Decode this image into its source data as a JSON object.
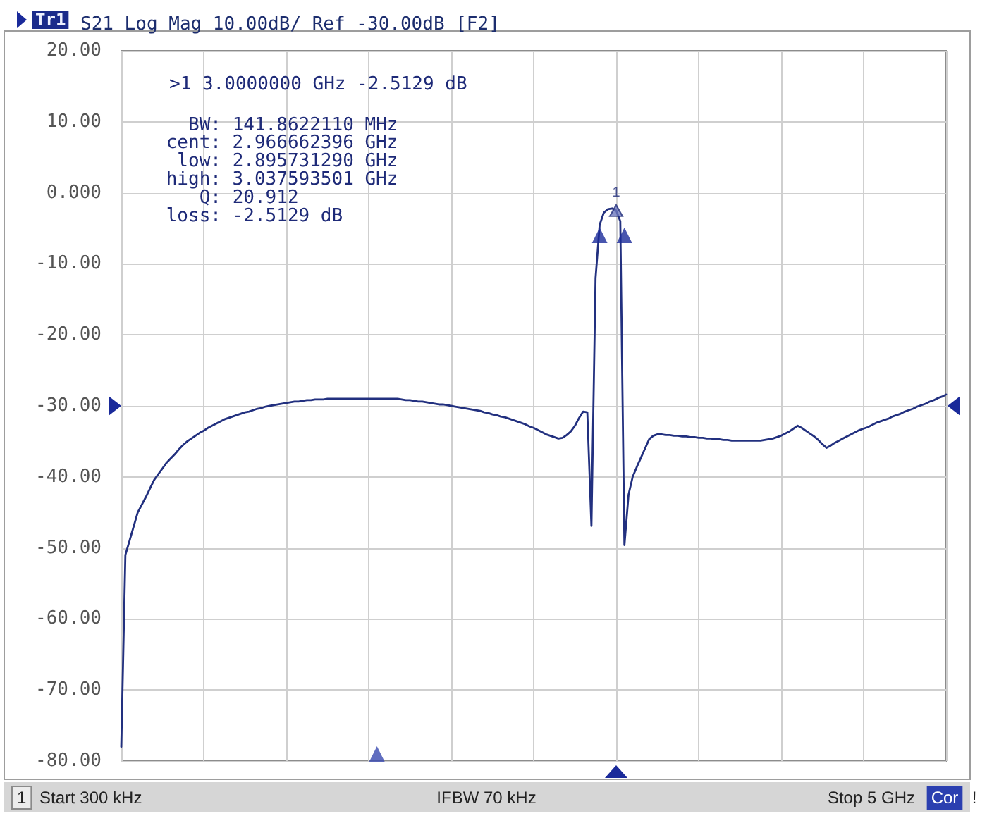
{
  "chart_data": {
    "type": "line",
    "title": "S21 Log Mag 10.00dB/ Ref -30.00dB [F2]",
    "annotations": [
      "Tr1",
      ">1 3.0000000 GHz -2.5129 dB",
      "BW: 141.8622110 MHz",
      "cent: 2.966662396 GHz",
      "low: 2.895731290 GHz",
      "high: 3.037593501 GHz",
      "Q: 20.912",
      "loss: -2.5129 dB",
      "1",
      "Start 300 kHz",
      "IFBW 70 kHz",
      "Stop 5 GHz",
      "Cor",
      "!"
    ],
    "categories": [
      null,
      null,
      null,
      null,
      null,
      null,
      null,
      null,
      null,
      null,
      null,
      null,
      null,
      null,
      null,
      null,
      null,
      null,
      null,
      null,
      null,
      null,
      null,
      null,
      null,
      null,
      null,
      null,
      null,
      null,
      null,
      null,
      null,
      null,
      null,
      null,
      null,
      null,
      null,
      null,
      null,
      null,
      null,
      null,
      null,
      null,
      null,
      null,
      null,
      null,
      null,
      null,
      null,
      null,
      null,
      null,
      null,
      null,
      null,
      null,
      null,
      null,
      null,
      null,
      null,
      null,
      null,
      null,
      null,
      null,
      null,
      null,
      null,
      null,
      null,
      null,
      null,
      null,
      null,
      null,
      null,
      null,
      null,
      null,
      null,
      null,
      null,
      null,
      null,
      null,
      null,
      null,
      null,
      null,
      null,
      null,
      null,
      null,
      null,
      null,
      null,
      null,
      null,
      null,
      null,
      null,
      null,
      null,
      null,
      null,
      null,
      null,
      null,
      null,
      null,
      null,
      null,
      null,
      null,
      null,
      null,
      null,
      null,
      null,
      null,
      null,
      null,
      null,
      null,
      null,
      null,
      null,
      null,
      null,
      null,
      null,
      null,
      null,
      null,
      null,
      null,
      null,
      null,
      null,
      null,
      null,
      null,
      null,
      null,
      null,
      null,
      null,
      null,
      null,
      null,
      null,
      null,
      null,
      null,
      null,
      null,
      null,
      null,
      null,
      null,
      null,
      null,
      null,
      null,
      null,
      null,
      null,
      null,
      null,
      null,
      null,
      null,
      null,
      null,
      null,
      null,
      null,
      null,
      null,
      null,
      null,
      null,
      null,
      null,
      null,
      null,
      null,
      null,
      null,
      null,
      null,
      null,
      null,
      null,
      null,
      null
    ],
    "series": [
      {
        "color": "#22307f",
        "values": [
          -78,
          -51,
          -49,
          -47,
          -45,
          -43.9,
          -42.8,
          -41.6,
          -40.4,
          -39.6,
          -38.8,
          -38,
          -37.4,
          -36.8,
          -36.1,
          -35.5,
          -35,
          -34.6,
          -34.2,
          -33.8,
          -33.5,
          -33.1,
          -32.8,
          -32.5,
          -32.2,
          -31.9,
          -31.7,
          -31.5,
          -31.3,
          -31.1,
          -30.9,
          -30.8,
          -30.6,
          -30.4,
          -30.3,
          -30.1,
          -30,
          -29.9,
          -29.8,
          -29.7,
          -29.6,
          -29.5,
          -29.4,
          -29.4,
          -29.3,
          -29.2,
          -29.2,
          -29.1,
          -29.1,
          -29.1,
          -29,
          -29,
          -29,
          -29,
          -29,
          -29,
          -29,
          -29,
          -29,
          -29,
          -29,
          -29,
          -29,
          -29,
          -29,
          -29,
          -29,
          -29,
          -29.1,
          -29.2,
          -29.2,
          -29.3,
          -29.4,
          -29.4,
          -29.5,
          -29.6,
          -29.7,
          -29.8,
          -29.8,
          -29.9,
          -30,
          -30.1,
          -30.2,
          -30.3,
          -30.4,
          -30.5,
          -30.6,
          -30.7,
          -30.9,
          -31,
          -31.2,
          -31.3,
          -31.5,
          -31.6,
          -31.8,
          -32,
          -32.2,
          -32.4,
          -32.6,
          -32.9,
          -33.1,
          -33.4,
          -33.7,
          -34,
          -34.2,
          -34.4,
          -34.6,
          -34.5,
          -34.1,
          -33.6,
          -32.8,
          -31.7,
          -30.8,
          -30.9,
          -46.9,
          -12,
          -4.5,
          -2.8,
          -2.3,
          -2.2,
          -2.5,
          -4,
          -49.6,
          -42.5,
          -40,
          -38.6,
          -37.3,
          -36,
          -34.7,
          -34.2,
          -34,
          -34,
          -34.1,
          -34.1,
          -34.2,
          -34.2,
          -34.3,
          -34.3,
          -34.4,
          -34.4,
          -34.5,
          -34.5,
          -34.6,
          -34.6,
          -34.7,
          -34.7,
          -34.8,
          -34.8,
          -34.9,
          -34.9,
          -34.9,
          -34.9,
          -34.9,
          -34.9,
          -34.9,
          -34.9,
          -34.8,
          -34.7,
          -34.6,
          -34.4,
          -34.2,
          -33.9,
          -33.6,
          -33.2,
          -32.8,
          -33.1,
          -33.5,
          -33.9,
          -34.3,
          -34.8,
          -35.4,
          -35.9,
          -35.6,
          -35.2,
          -34.9,
          -34.6,
          -34.3,
          -34,
          -33.7,
          -33.4,
          -33.2,
          -33,
          -32.7,
          -32.4,
          -32.2,
          -32,
          -31.8,
          -31.5,
          -31.3,
          -31.1,
          -30.8,
          -30.6,
          -30.4,
          -30.1,
          -29.9,
          -29.7,
          -29.4,
          -29.2,
          -28.9,
          -28.7,
          -28.4
        ]
      },
      {
        "type": "scatter",
        "marker": "triangle",
        "color": "#1a2a9a",
        "values": [
          null,
          null,
          null,
          null,
          null,
          null,
          null,
          null,
          null,
          null,
          null,
          null,
          null,
          null,
          null,
          null,
          null,
          null,
          null,
          null,
          null,
          null,
          null,
          null,
          null,
          null,
          null,
          null,
          null,
          null,
          null,
          null,
          null,
          null,
          null,
          null,
          null,
          null,
          null,
          null,
          null,
          null,
          null,
          null,
          null,
          null,
          null,
          null,
          null,
          null,
          null,
          null,
          null,
          null,
          null,
          null,
          null,
          null,
          null,
          null,
          null,
          null,
          null,
          null,
          null,
          null,
          null,
          null,
          null,
          null,
          null,
          null,
          null,
          null,
          null,
          null,
          null,
          null,
          null,
          null,
          null,
          null,
          null,
          null,
          null,
          null,
          null,
          null,
          null,
          null,
          null,
          null,
          null,
          null,
          null,
          null,
          null,
          null,
          null,
          null,
          null,
          null,
          null,
          null,
          null,
          null,
          null,
          null,
          null,
          null,
          null,
          null,
          null,
          null,
          null,
          null,
          -6,
          null,
          null,
          null,
          null,
          null,
          -6,
          null,
          null,
          null,
          null,
          null,
          null,
          null,
          null,
          null,
          null,
          null,
          null,
          null,
          null,
          null,
          null,
          null,
          null,
          null,
          null,
          null,
          null,
          null,
          null,
          null,
          null,
          null,
          null,
          null,
          null,
          null,
          null,
          null,
          null,
          null,
          null,
          null,
          null,
          null,
          null,
          null,
          null,
          null,
          null,
          null,
          null,
          null,
          null,
          null,
          null,
          null,
          null,
          null,
          null,
          null,
          null,
          null,
          null,
          null,
          null,
          null,
          null,
          null,
          null,
          null,
          null,
          null,
          null,
          null,
          null,
          null,
          null,
          null,
          null,
          null,
          null,
          null,
          null
        ]
      },
      {
        "type": "scatter",
        "name": "1",
        "marker": "triangle",
        "color": "#6d78bd",
        "values": [
          null,
          null,
          null,
          null,
          null,
          null,
          null,
          null,
          null,
          null,
          null,
          null,
          null,
          null,
          null,
          null,
          null,
          null,
          null,
          null,
          null,
          null,
          null,
          null,
          null,
          null,
          null,
          null,
          null,
          null,
          null,
          null,
          null,
          null,
          null,
          null,
          null,
          null,
          null,
          null,
          null,
          null,
          null,
          null,
          null,
          null,
          null,
          null,
          null,
          null,
          null,
          null,
          null,
          null,
          null,
          null,
          null,
          null,
          null,
          null,
          null,
          null,
          null,
          null,
          null,
          null,
          null,
          null,
          null,
          null,
          null,
          null,
          null,
          null,
          null,
          null,
          null,
          null,
          null,
          null,
          null,
          null,
          null,
          null,
          null,
          null,
          null,
          null,
          null,
          null,
          null,
          null,
          null,
          null,
          null,
          null,
          null,
          null,
          null,
          null,
          null,
          null,
          null,
          null,
          null,
          null,
          null,
          null,
          null,
          null,
          null,
          null,
          null,
          null,
          null,
          null,
          null,
          null,
          null,
          null,
          -2.5129,
          null,
          null,
          null,
          null,
          null,
          null,
          null,
          null,
          null,
          null,
          null,
          null,
          null,
          null,
          null,
          null,
          null,
          null,
          null,
          null,
          null,
          null,
          null,
          null,
          null,
          null,
          null,
          null,
          null,
          null,
          null,
          null,
          null,
          null,
          null,
          null,
          null,
          null,
          null,
          null,
          null,
          null,
          null,
          null,
          null,
          null,
          null,
          null,
          null,
          null,
          null,
          null,
          null,
          null,
          null,
          null,
          null,
          null,
          null,
          null,
          null,
          null,
          null,
          null,
          null,
          null,
          null,
          null,
          null,
          null,
          null,
          null,
          null,
          null,
          null,
          null,
          null,
          null,
          null,
          null
        ]
      },
      {
        "type": "scatter",
        "marker": "triangle",
        "color": "#3a4ab0",
        "values": [
          null,
          null,
          null,
          null,
          null,
          null,
          null,
          null,
          null,
          null,
          null,
          null,
          null,
          null,
          null,
          null,
          null,
          null,
          null,
          null,
          null,
          null,
          null,
          null,
          null,
          null,
          null,
          null,
          null,
          null,
          null,
          null,
          null,
          null,
          null,
          null,
          null,
          null,
          null,
          null,
          null,
          null,
          null,
          null,
          null,
          null,
          null,
          null,
          null,
          null,
          null,
          null,
          null,
          null,
          null,
          null,
          null,
          null,
          null,
          null,
          null,
          null,
          -79,
          null,
          null,
          null,
          null,
          null,
          null,
          null,
          null,
          null,
          null,
          null,
          null,
          null,
          null,
          null,
          null,
          null,
          null,
          null,
          null,
          null,
          null,
          null,
          null,
          null,
          null,
          null,
          null,
          null,
          null,
          null,
          null,
          null,
          null,
          null,
          null,
          null,
          null,
          null,
          null,
          null,
          null,
          null,
          null,
          null,
          null,
          null,
          null,
          null,
          null,
          null,
          null,
          null,
          null,
          null,
          null,
          null,
          null,
          null,
          null,
          null,
          null,
          null,
          null,
          null,
          null,
          null,
          null,
          null,
          null,
          null,
          null,
          null,
          null,
          null,
          null,
          null,
          null,
          null,
          null,
          null,
          null,
          null,
          null,
          null,
          null,
          null,
          null,
          null,
          null,
          null,
          null,
          null,
          null,
          null,
          null,
          null,
          null,
          null,
          null,
          null,
          null,
          null,
          null,
          null,
          null,
          null,
          null,
          null,
          null,
          null,
          null,
          null,
          null,
          null,
          null,
          null,
          null,
          null,
          null,
          null,
          null,
          null,
          null,
          null,
          null,
          null,
          null,
          null,
          null,
          null,
          null,
          null,
          null,
          null,
          null,
          null,
          null
        ]
      }
    ],
    "ylim": [
      -80,
      20
    ],
    "yticks": [
      {
        "value": 20,
        "label": "20.00"
      },
      {
        "value": 10,
        "label": "10.00"
      },
      {
        "value": 0,
        "label": "0.000"
      },
      {
        "value": -10,
        "label": "-10.00"
      },
      {
        "value": -20,
        "label": "-20.00"
      },
      {
        "value": -30,
        "label": "-30.00"
      },
      {
        "value": -40,
        "label": "-40.00"
      },
      {
        "value": -50,
        "label": "-50.00"
      },
      {
        "value": -60,
        "label": "-60.00"
      },
      {
        "value": -70,
        "label": "-70.00"
      },
      {
        "value": -80,
        "label": "-80.00"
      }
    ],
    "grid": true,
    "tick_labels": "y",
    "line_style": "solid"
  }
}
